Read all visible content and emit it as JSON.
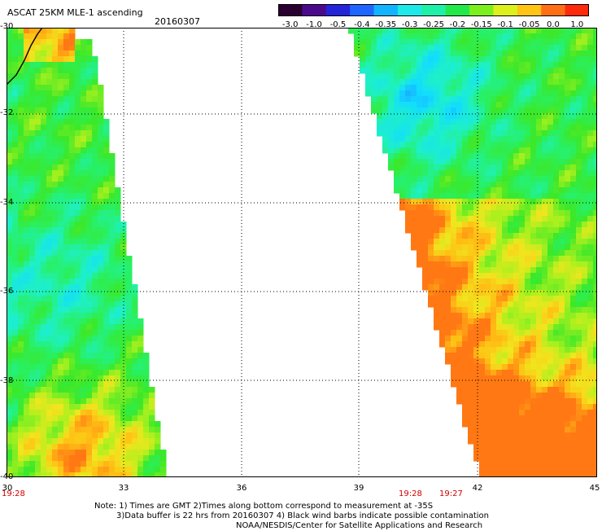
{
  "header": {
    "title": "ASCAT 25KM MLE-1 ascending",
    "date": "20160307"
  },
  "colorbar": {
    "labels": [
      "-3.0",
      "-1.0",
      "-0.5",
      "-0.4",
      "-0.35",
      "-0.3",
      "-0.25",
      "-0.2",
      "-0.15",
      "-0.1",
      "-0.05",
      "0.0",
      "1.0"
    ],
    "colors": [
      "#2a0030",
      "#4b0a8c",
      "#2424d8",
      "#1e66ff",
      "#12b4ff",
      "#1ee8e8",
      "#1ef0a8",
      "#22e84a",
      "#7cf01c",
      "#dcf01c",
      "#ffc414",
      "#ff6e14",
      "#ff2a0a"
    ]
  },
  "axes": {
    "y_labels": [
      "-30",
      "-32",
      "-34",
      "-36",
      "-38",
      "-40"
    ],
    "x_labels": [
      "30",
      "33",
      "36",
      "39",
      "42",
      "45"
    ]
  },
  "times": {
    "left": "19:28",
    "mid1": "19:28",
    "mid2": "19:27"
  },
  "notes": {
    "line1": "Note: 1) Times are GMT 2)Times along bottom correspond to measurement at -35S",
    "line2": "3)Data buffer is 22 hrs from 20160307 4) Black wind barbs indicate possible contamination",
    "line3": "NOAA/NESDIS/Center for Satellite Applications and Research"
  }
}
